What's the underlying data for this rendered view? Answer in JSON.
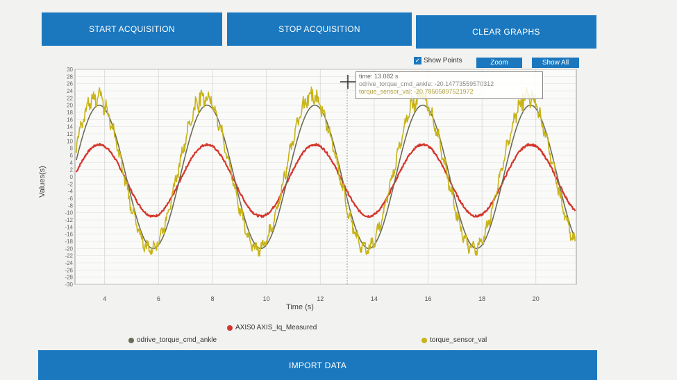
{
  "toolbar": {
    "start_label": "START ACQUISITION",
    "stop_label": "STOP ACQUISITION",
    "clear_label": "CLEAR GRAPHS",
    "import_label": "IMPORT DATA"
  },
  "controls": {
    "show_points_label": "Show Points",
    "show_points_checked": true,
    "zoom_label": "Zoom",
    "show_all_label": "Show All"
  },
  "tooltip": {
    "line1": "time: 13.082 s",
    "line2": "odrive_torque_cmd_ankle: -20.14773559570312",
    "line3": "torque_sensor_val: -20.78505897521972"
  },
  "colors": {
    "accent": "#1b78bf",
    "axis0_iq": "#d4362c",
    "odrive_cmd": "#6b6b58",
    "torque_sensor": "#c8b418"
  },
  "chart_data": {
    "type": "line",
    "xlabel": "Time (s)",
    "ylabel": "Values(s)",
    "xlim": [
      2.9,
      21.5
    ],
    "ylim": [
      -30,
      30
    ],
    "x_ticks": [
      4,
      6,
      8,
      10,
      12,
      14,
      16,
      18,
      20
    ],
    "y_ticks": [
      30,
      28,
      26,
      24,
      22,
      20,
      18,
      16,
      14,
      12,
      10,
      8,
      6,
      4,
      2,
      0,
      -2,
      -4,
      -6,
      -8,
      -10,
      -12,
      -14,
      -16,
      -18,
      -20,
      -22,
      -24,
      -26,
      -28,
      -30
    ],
    "grid": true,
    "legend_position": "bottom",
    "series": [
      {
        "name": "AXIS0 AXIS_Iq_Measured",
        "color": "#d4362c",
        "amplitude": 10,
        "offset": -1,
        "period": 4,
        "phase_peak_x": 3.8
      },
      {
        "name": "odrive_torque_cmd_ankle",
        "color": "#6b6b58",
        "amplitude": 20,
        "offset": 0,
        "period": 4,
        "phase_peak_x": 3.8
      },
      {
        "name": "torque_sensor_val",
        "color": "#c8b418",
        "amplitude": 21,
        "offset": 1,
        "period": 4,
        "phase_peak_x": 3.7
      }
    ],
    "legend": {
      "row1": [
        "AXIS0 AXIS_Iq_Measured"
      ],
      "row2": [
        "odrive_torque_cmd_ankle",
        "torque_sensor_val"
      ]
    }
  }
}
